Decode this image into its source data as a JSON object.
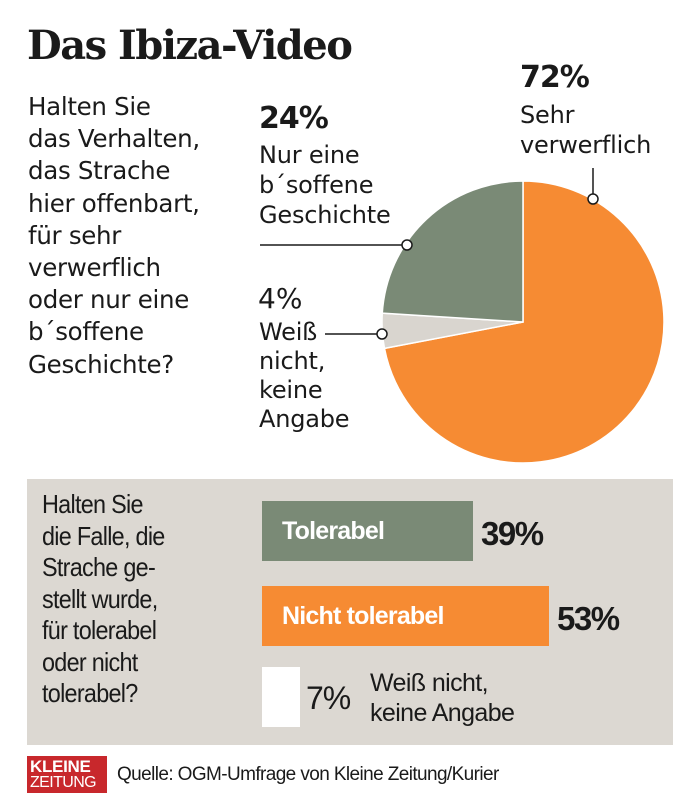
{
  "title": "Das Ibiza-Video",
  "question1": "Halten Sie\ndas Verhalten,\ndas Strache\nhier offenbart,\nfür sehr\nverwerflich\noder nur eine\nb´soffene\nGeschichte?",
  "question2": "Halten Sie\ndie Falle, die\nStrache ge-\nstellt wurde,\nfür tolerabel\noder nicht\ntolerabel?",
  "source": "Quelle: OGM-Umfrage von Kleine Zeitung/Kurier",
  "logo": {
    "line1": "KLEINE",
    "line2": "ZEITUNG"
  },
  "colors": {
    "orange": "#f68b33",
    "green": "#7a8a76",
    "lightgray": "#d9d5cf",
    "panel": "#dcd8d2",
    "white": "#ffffff",
    "logo_red": "#c8282c"
  },
  "chart_data": [
    {
      "type": "pie",
      "title": "Halten Sie das Verhalten, das Strache hier offenbart, für sehr verwerflich oder nur eine b´soffene Geschichte?",
      "start": "12 o'clock",
      "direction": "clockwise",
      "slices": [
        {
          "label": "Sehr verwerflich",
          "value": 72,
          "pct_text": "72%",
          "label_text": "Sehr\nverwerflich",
          "color": "#f68b33"
        },
        {
          "label": "Weiß nicht, keine Angabe",
          "value": 4,
          "pct_text": "4%",
          "label_text": "Weiß\nnicht,\nkeine\nAngabe",
          "color": "#d9d5cf"
        },
        {
          "label": "Nur eine b´soffene Geschichte",
          "value": 24,
          "pct_text": "24%",
          "label_text": "Nur eine\nb´soffene\nGeschichte",
          "color": "#7a8a76"
        }
      ]
    },
    {
      "type": "bar",
      "orientation": "horizontal",
      "title": "Halten Sie die Falle, die Strache gestellt wurde, für tolerabel oder nicht tolerabel?",
      "categories": [
        "Tolerabel",
        "Nicht tolerabel",
        "Weiß nicht, keine Angabe"
      ],
      "values": [
        39,
        53,
        7
      ],
      "value_labels": [
        "39%",
        "53%",
        "7%"
      ],
      "colors": [
        "#7a8a76",
        "#f68b33",
        "#ffffff"
      ],
      "xlim": [
        0,
        53
      ]
    }
  ]
}
